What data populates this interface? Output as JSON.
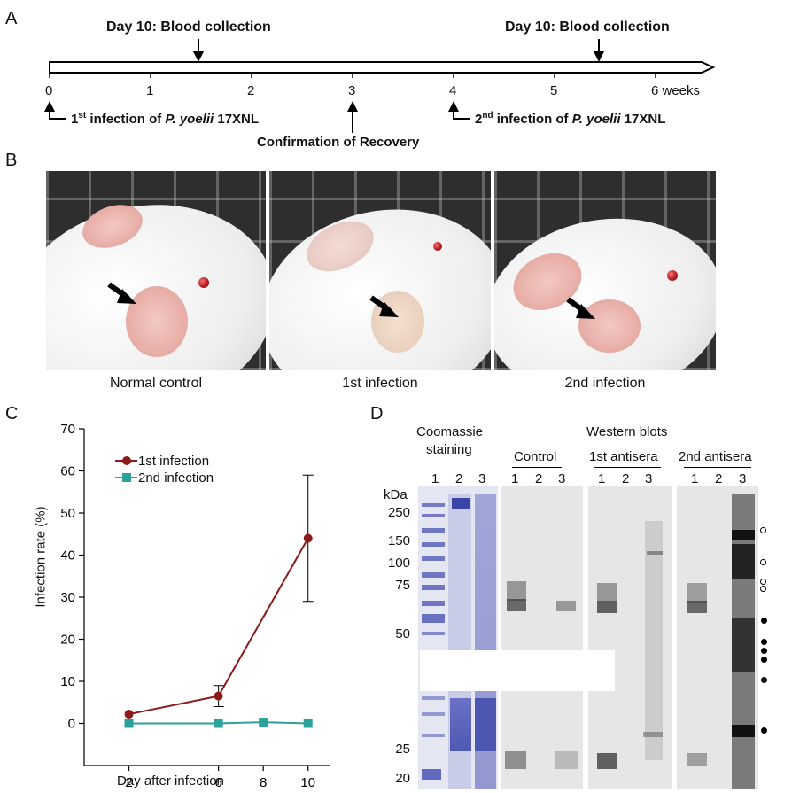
{
  "panels": {
    "a": "A",
    "b": "B",
    "c": "C",
    "d": "D"
  },
  "timeline": {
    "ticks": [
      "0",
      "1",
      "2",
      "3",
      "4",
      "5",
      "6 weeks"
    ],
    "blood1": "Day 10: Blood collection",
    "blood2": "Day 10: Blood collection",
    "inf1_prefix": "1",
    "inf1_sup": "st",
    "inf1_mid": " infection of ",
    "inf1_species": "P. yoelii",
    "inf1_strain": " 17XNL",
    "inf2_prefix": "2",
    "inf2_sup": "nd",
    "inf2_mid": " infection of ",
    "inf2_species": "P. yoelii",
    "inf2_strain": " 17XNL",
    "recovery": "Confirmation of Recovery"
  },
  "photos": {
    "captions": [
      "Normal control",
      "1st infection",
      "2nd infection"
    ]
  },
  "chart_data": {
    "type": "line",
    "x": [
      2,
      6,
      8,
      10
    ],
    "series": [
      {
        "name": "1st infection",
        "color": "#8b1a1a",
        "marker": "circle",
        "points": [
          [
            2,
            2.2
          ],
          [
            6,
            6.5
          ],
          [
            10,
            44
          ]
        ],
        "errors": [
          0,
          2.5,
          15
        ]
      },
      {
        "name": "2nd infection",
        "color": "#2aa19a",
        "marker": "square",
        "points": [
          [
            2,
            0
          ],
          [
            6,
            0
          ],
          [
            8,
            0.3
          ],
          [
            10,
            0
          ]
        ],
        "errors": [
          0,
          0,
          0,
          0
        ]
      }
    ],
    "xlabel": "Day after infection",
    "ylabel": "Infection rate (%)",
    "xticks": [
      "2",
      "6",
      "8",
      "10"
    ],
    "yticks": [
      "0",
      "10",
      "20",
      "30",
      "40",
      "50",
      "60",
      "70"
    ],
    "xlim": [
      0,
      11
    ],
    "ylim": [
      -10,
      70
    ],
    "legend_position": "top-left"
  },
  "blots": {
    "coomassie_title_line1": "Coomassie",
    "coomassie_title_line2": "staining",
    "western_title": "Western blots",
    "groups": [
      "Control",
      "1st antisera",
      "2nd antisera"
    ],
    "lanes": [
      "1",
      "2",
      "3"
    ],
    "kda_label": "kDa",
    "mw_markers": [
      "250",
      "150",
      "100",
      "75",
      "50",
      "25",
      "20"
    ]
  }
}
